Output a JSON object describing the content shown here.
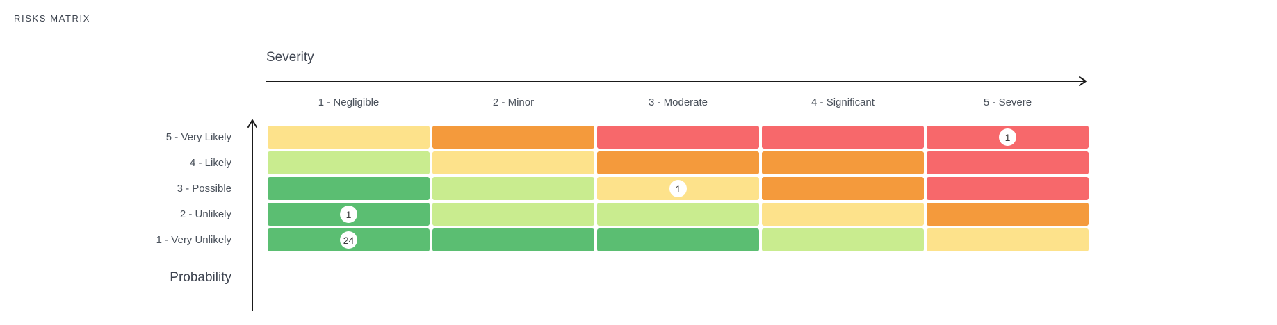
{
  "title": "RISKS MATRIX",
  "axes": {
    "x_label": "Severity",
    "y_label": "Probability"
  },
  "colors": {
    "low": "#5BBE72",
    "minor": "#C9EC8F",
    "moderate": "#FDE28B",
    "high": "#F49A3C",
    "critical": "#F7686B",
    "axis_line": "#1a1a1a",
    "badge_bg": "#ffffff",
    "badge_text": "#3b3b3b"
  },
  "chart_data": {
    "type": "heatmap",
    "title": "RISKS MATRIX",
    "xlabel": "Severity",
    "ylabel": "Probability",
    "x_categories": [
      "1 - Negligible",
      "2 - Minor",
      "3 - Moderate",
      "4 - Significant",
      "5 - Severe"
    ],
    "y_categories": [
      "5 - Very Likely",
      "4 - Likely",
      "3 - Possible",
      "2 - Unlikely",
      "1 - Very Unlikely"
    ],
    "cell_levels": [
      [
        "moderate",
        "high",
        "critical",
        "critical",
        "critical"
      ],
      [
        "minor",
        "moderate",
        "high",
        "high",
        "critical"
      ],
      [
        "low",
        "minor",
        "moderate",
        "high",
        "critical"
      ],
      [
        "low",
        "minor",
        "minor",
        "moderate",
        "high"
      ],
      [
        "low",
        "low",
        "low",
        "minor",
        "moderate"
      ]
    ],
    "counts": [
      [
        null,
        null,
        null,
        null,
        1
      ],
      [
        null,
        null,
        null,
        null,
        null
      ],
      [
        null,
        null,
        1,
        null,
        null
      ],
      [
        1,
        null,
        null,
        null,
        null
      ],
      [
        24,
        null,
        null,
        null,
        null
      ]
    ],
    "legend_position": "none",
    "grid": false
  }
}
